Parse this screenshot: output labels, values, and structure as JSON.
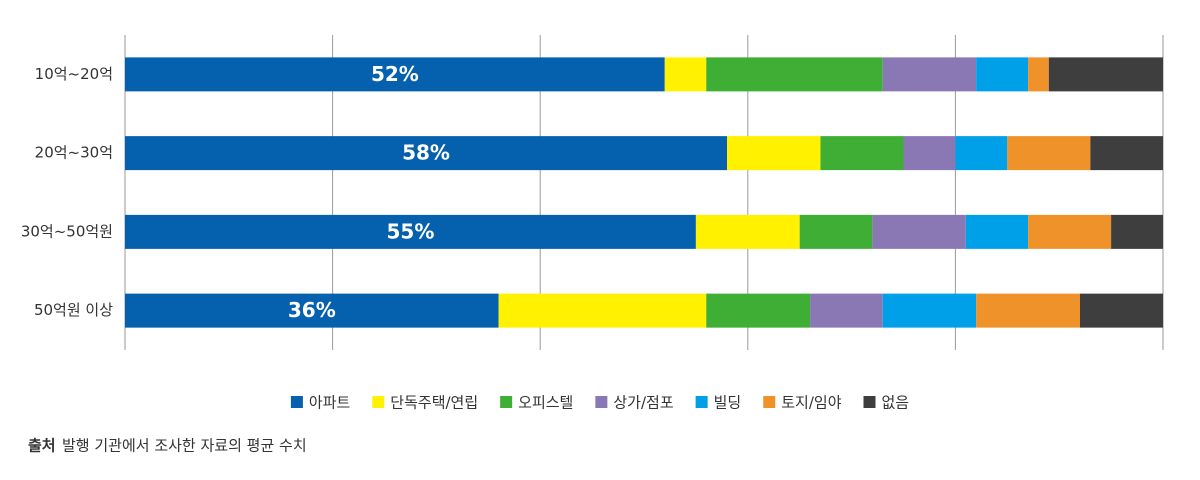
{
  "chart_data": {
    "type": "stacked_barh",
    "categories": [
      "10억~20억",
      "20억~30억",
      "30억~50억원",
      "50억원 이상"
    ],
    "series": [
      {
        "name": "아파트",
        "color": "#0561ad",
        "values": [
          52,
          58,
          55,
          36
        ],
        "value_labels": [
          "52%",
          "58%",
          "55%",
          "36%"
        ]
      },
      {
        "name": "단독주택/연립",
        "color": "#fff100",
        "values": [
          4,
          9,
          10,
          20
        ]
      },
      {
        "name": "오피스텔",
        "color": "#3fae35",
        "values": [
          17,
          8,
          7,
          10
        ]
      },
      {
        "name": "상가/점포",
        "color": "#8a78b5",
        "values": [
          9,
          5,
          9,
          7
        ]
      },
      {
        "name": "빌딩",
        "color": "#00a0e9",
        "values": [
          5,
          5,
          6,
          9
        ]
      },
      {
        "name": "토지/임야",
        "color": "#ef922a",
        "values": [
          2,
          8,
          8,
          10
        ]
      },
      {
        "name": "없음",
        "color": "#3e3e3e",
        "values": [
          11,
          7,
          5,
          8
        ]
      }
    ],
    "xlim": [
      0,
      100
    ],
    "xticks": [
      0,
      20,
      40,
      60,
      80,
      100
    ],
    "grid": true,
    "source_label": "출처",
    "source": "발행 기관에서 조사한 자료의 평균 수치"
  }
}
